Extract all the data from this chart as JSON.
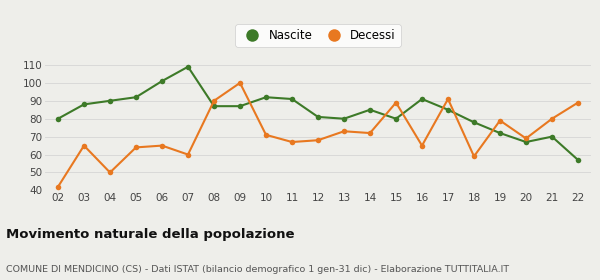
{
  "years": [
    "02",
    "03",
    "04",
    "05",
    "06",
    "07",
    "08",
    "09",
    "10",
    "11",
    "12",
    "13",
    "14",
    "15",
    "16",
    "17",
    "18",
    "19",
    "20",
    "21",
    "22"
  ],
  "nascite": [
    80,
    88,
    90,
    92,
    101,
    109,
    87,
    87,
    92,
    91,
    81,
    80,
    85,
    80,
    91,
    85,
    78,
    72,
    67,
    70,
    57
  ],
  "decessi": [
    42,
    65,
    50,
    64,
    65,
    60,
    90,
    100,
    71,
    67,
    68,
    73,
    72,
    89,
    65,
    91,
    59,
    79,
    69,
    80,
    89
  ],
  "nascite_color": "#3d7a28",
  "decessi_color": "#e87820",
  "background_color": "#eeeeea",
  "grid_color": "#d5d5d5",
  "title": "Movimento naturale della popolazione",
  "subtitle": "COMUNE DI MENDICINO (CS) - Dati ISTAT (bilancio demografico 1 gen-31 dic) - Elaborazione TUTTITALIA.IT",
  "legend_nascite": "Nascite",
  "legend_decessi": "Decessi",
  "ylim": [
    40,
    115
  ],
  "yticks": [
    40,
    50,
    60,
    70,
    80,
    90,
    100,
    110
  ],
  "title_fontsize": 9.5,
  "subtitle_fontsize": 6.8,
  "tick_fontsize": 7.5,
  "legend_fontsize": 8.5,
  "marker_size": 4,
  "line_width": 1.5
}
